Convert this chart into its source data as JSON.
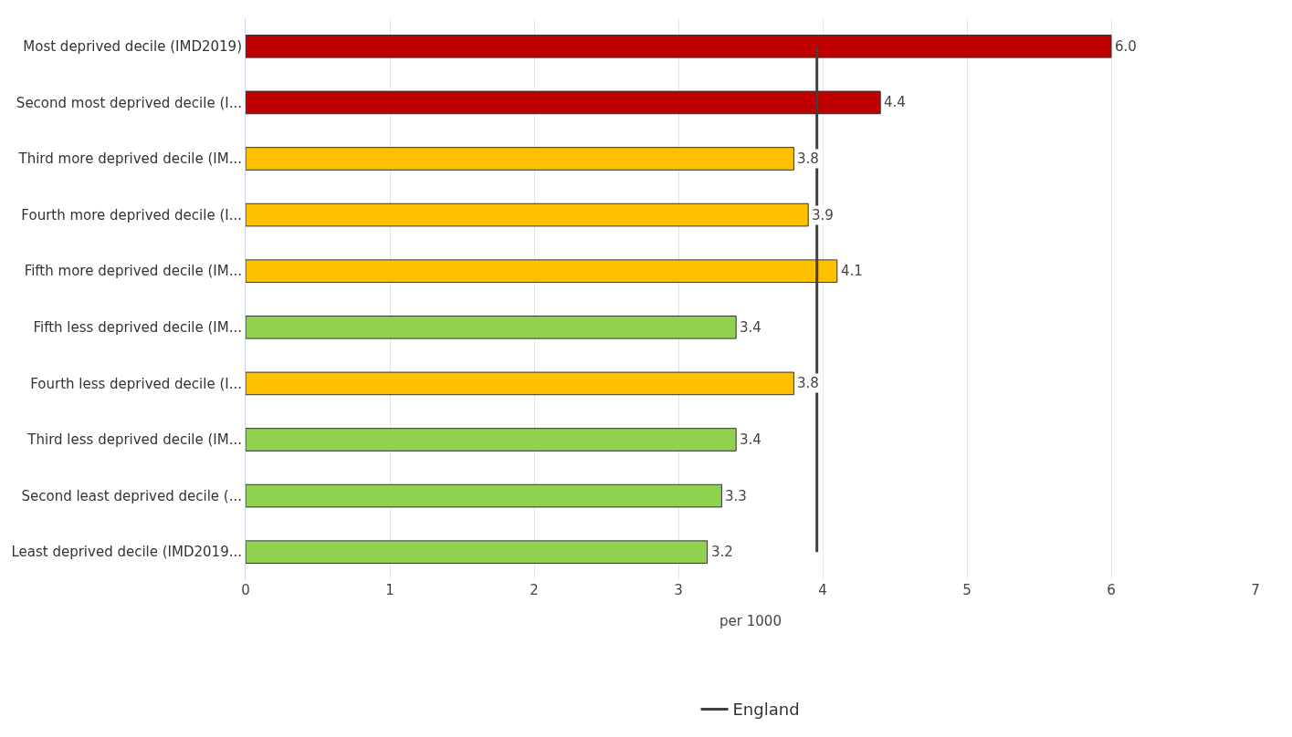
{
  "chart_data": {
    "type": "bar",
    "orientation": "horizontal",
    "xlabel": "per 1000",
    "categories": [
      "Most deprived decile (IMD2019)",
      "Second most deprived decile (I...",
      "Third more deprived decile (IM...",
      "Fourth more deprived decile (I...",
      "Fifth more deprived decile (IM...",
      "Fifth less deprived decile (IM...",
      "Fourth less deprived decile (I...",
      "Third less deprived decile (IM...",
      "Second least deprived decile (...",
      "Least deprived decile (IMD2019..."
    ],
    "values": [
      6.0,
      4.4,
      3.8,
      3.9,
      4.1,
      3.4,
      3.8,
      3.4,
      3.3,
      3.2
    ],
    "value_labels": [
      "6.0",
      "4.4",
      "3.8",
      "3.9",
      "4.1",
      "3.4",
      "3.8",
      "3.4",
      "3.3",
      "3.2"
    ],
    "colors": [
      "#c00000",
      "#c00000",
      "#ffc000",
      "#ffc000",
      "#ffc000",
      "#92d050",
      "#ffc000",
      "#92d050",
      "#92d050",
      "#92d050"
    ],
    "xlim": [
      0,
      7
    ],
    "xticks": [
      0,
      1,
      2,
      3,
      4,
      5,
      6,
      7
    ],
    "grid": "x",
    "legend": "bottom",
    "ref_lines": [
      {
        "axis": "x",
        "value": 3.96,
        "label": "England",
        "color": "#404040"
      }
    ]
  }
}
